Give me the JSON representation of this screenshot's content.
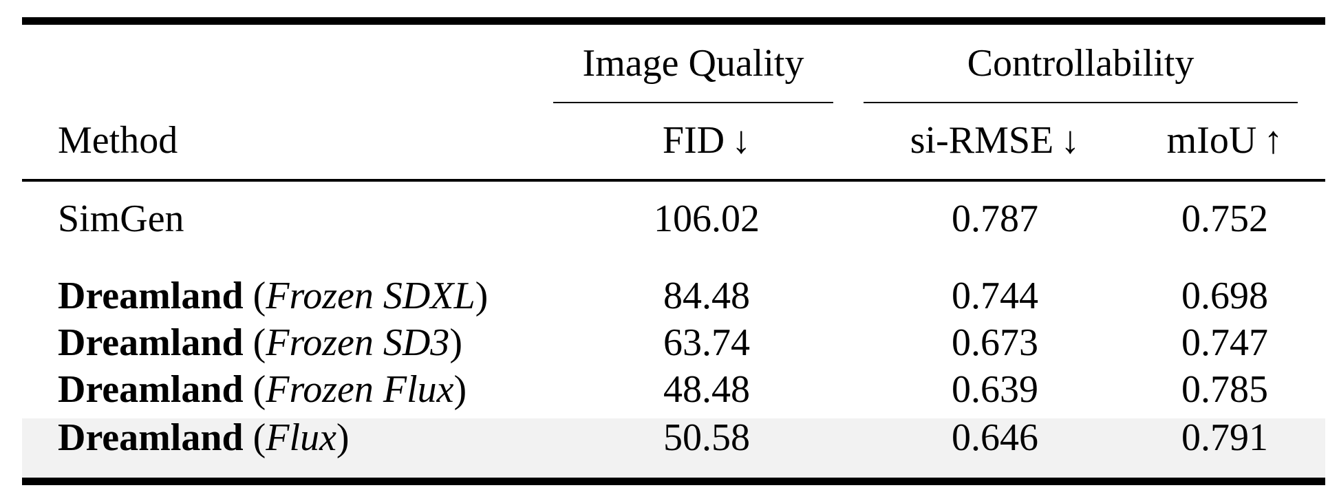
{
  "table": {
    "group_headers": {
      "quality": "Image Quality",
      "controllability": "Controllability"
    },
    "column_headers": {
      "method": "Method",
      "fid": "FID",
      "fid_arrow": "↓",
      "rmse": "si-RMSE",
      "rmse_arrow": "↓",
      "miou": "mIoU",
      "miou_arrow": "↑"
    },
    "rows": [
      {
        "method_name": "SimGen",
        "fid": "106.02",
        "rmse": "0.787",
        "miou": "0.752"
      },
      {
        "method_name": "Dreamland",
        "open": " (",
        "variant": "Frozen SDXL",
        "close": ")",
        "fid": "84.48",
        "rmse": "0.744",
        "miou": "0.698"
      },
      {
        "method_name": "Dreamland",
        "open": " (",
        "variant": "Frozen SD3",
        "close": ")",
        "fid": "63.74",
        "rmse": "0.673",
        "miou": "0.747"
      },
      {
        "method_name": "Dreamland",
        "open": " (",
        "variant": "Frozen Flux",
        "close": ")",
        "fid": "48.48",
        "rmse": "0.639",
        "miou": "0.785"
      },
      {
        "method_name": "Dreamland",
        "open": " (",
        "variant": "Flux",
        "close": ")",
        "fid": "50.58",
        "rmse": "0.646",
        "miou": "0.791"
      }
    ],
    "highlight_color": "#f2f2f2"
  }
}
